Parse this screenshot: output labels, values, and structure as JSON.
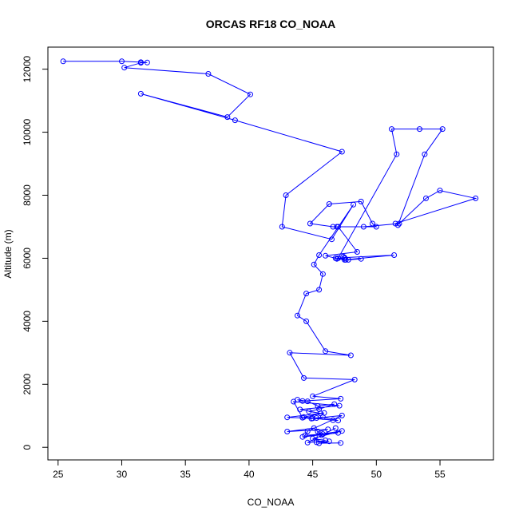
{
  "chart_data": {
    "type": "line",
    "title": "ORCAS RF18 CO_NOAA",
    "xlabel": "CO_NOAA",
    "ylabel": "Altitude (m)",
    "xlim": [
      24.2,
      59.2
    ],
    "ylim": [
      -400,
      12700
    ],
    "xticks": [
      25,
      30,
      35,
      40,
      45,
      50,
      55
    ],
    "yticks": [
      0,
      2000,
      4000,
      6000,
      8000,
      10000,
      12000
    ],
    "series_color": "#0000ff",
    "marker": "open-circle",
    "grid": false,
    "series": [
      {
        "x": [
          25.4,
          30.0,
          31.5,
          32.0,
          31.5,
          30.2,
          36.8,
          40.1,
          38.3,
          31.5,
          38.9,
          47.3,
          42.9,
          42.6,
          46.5,
          48.2,
          45.5,
          45.1,
          45.8,
          45.5,
          44.5,
          43.8,
          44.5,
          46.0,
          48.0,
          43.2,
          44.3,
          48.3,
          45.0,
          47.2,
          44.2,
          43.8,
          44.6,
          45.4,
          46.7,
          45.5,
          44.7,
          45.6,
          44.0,
          47.1,
          43.5,
          44.2,
          44.9,
          45.8,
          47.0,
          44.3,
          45.9,
          43.0,
          45.0,
          46.6,
          45.3,
          47.3,
          44.6,
          44.4,
          45.8,
          47.0,
          44.2,
          47.3,
          45.0,
          46.0,
          45.3,
          45.4,
          46.2,
          43.0,
          45.1,
          45.7,
          46.8,
          44.6,
          46.3,
          45.5,
          47.2
        ],
        "y": [
          12250,
          12250,
          12220,
          12210,
          12200,
          12050,
          11850,
          11200,
          10480,
          11220,
          10380,
          9380,
          8000,
          7000,
          6600,
          7700,
          6100,
          5800,
          5500,
          5000,
          4880,
          4180,
          4000,
          3050,
          2920,
          3000,
          2200,
          2150,
          1620,
          1540,
          1470,
          1510,
          1460,
          1310,
          1370,
          1210,
          1140,
          1080,
          1200,
          1320,
          1450,
          940,
          910,
          960,
          850,
          960,
          1090,
          950,
          920,
          860,
          930,
          1010,
          510,
          380,
          420,
          460,
          330,
          520,
          280,
          220,
          160,
          500,
          570,
          500,
          610,
          380,
          610,
          150,
          190,
          130,
          140
        ]
      },
      {
        "x": [
          47.4,
          47.5,
          46.8,
          46.0,
          48.5,
          47.0,
          50.0,
          49.7,
          48.8,
          46.3,
          44.8,
          46.6,
          46.9,
          49.0,
          51.8,
          53.9,
          55.0,
          57.8,
          51.5,
          51.7,
          53.8,
          55.2,
          53.4,
          51.2,
          51.6,
          47.0,
          47.5,
          51.4,
          47.5,
          46.9,
          47.6,
          48.8,
          47.8
        ],
        "y": [
          6050,
          6000,
          6000,
          6080,
          6200,
          7000,
          7000,
          7100,
          7800,
          7720,
          7100,
          7000,
          7000,
          7000,
          7100,
          7900,
          8150,
          7900,
          7100,
          7050,
          9300,
          10100,
          10100,
          10100,
          9300,
          6000,
          5950,
          6100,
          6020,
          5980,
          5950,
          5980,
          5950
        ]
      }
    ]
  }
}
